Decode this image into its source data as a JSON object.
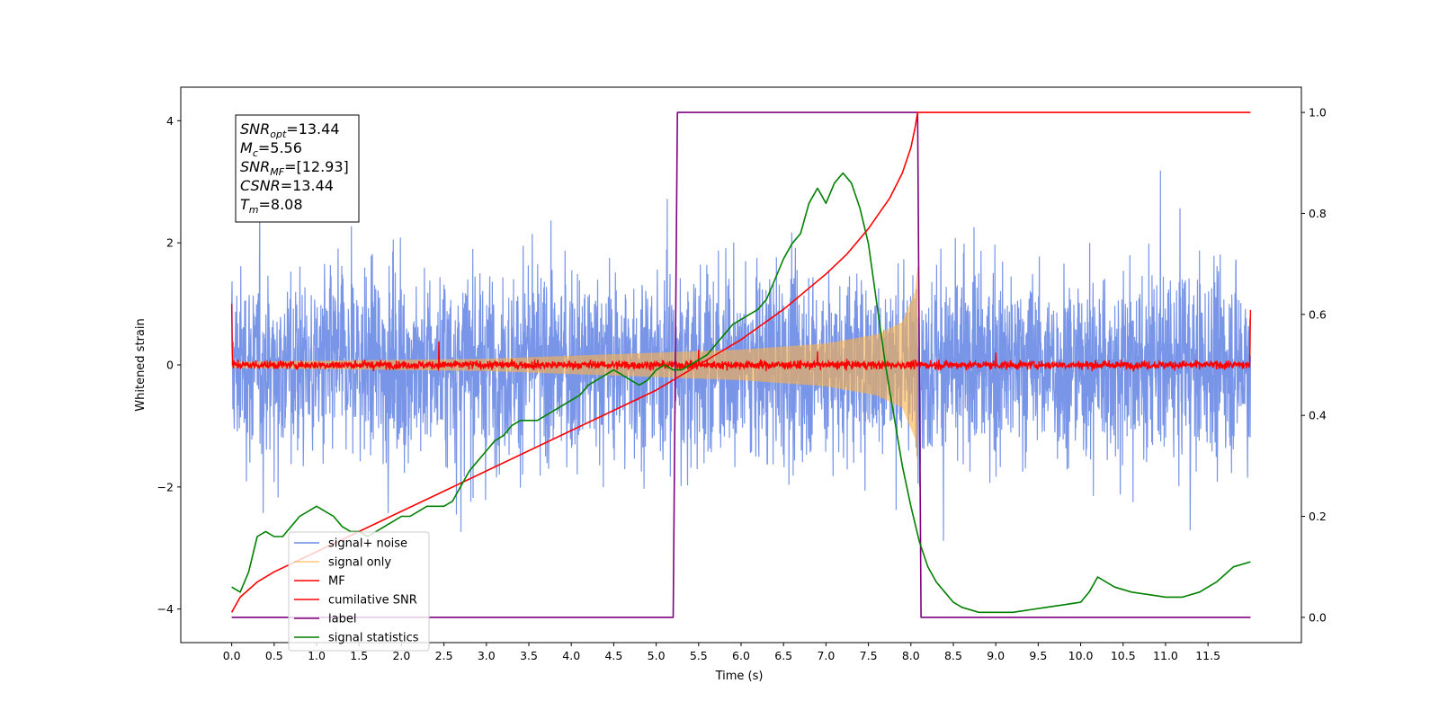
{
  "chart_data": {
    "type": "line",
    "title": "",
    "xlabel": "Time (s)",
    "ylabel": "Whitened strain",
    "xlim": [
      -0.6,
      12.6
    ],
    "ylim": [
      -4.55,
      4.55
    ],
    "ylim_right": [
      -0.05,
      1.05
    ],
    "grid": false,
    "legend_position": "lower-left",
    "x_ticks": [
      "0.0",
      "0.5",
      "1.0",
      "1.5",
      "2.0",
      "2.5",
      "3.0",
      "3.5",
      "4.0",
      "4.5",
      "5.0",
      "5.5",
      "6.0",
      "6.5",
      "7.0",
      "7.5",
      "8.0",
      "8.5",
      "9.0",
      "9.5",
      "10.0",
      "10.5",
      "11.0",
      "11.5"
    ],
    "y_ticks_left": [
      "-4",
      "-2",
      "0",
      "2",
      "4"
    ],
    "y_ticks_right": [
      "0.0",
      "0.2",
      "0.4",
      "0.6",
      "0.8",
      "1.0"
    ],
    "annotation": [
      {
        "base": "SNR",
        "sub": "opt",
        "rest": "=13.44"
      },
      {
        "base": "M",
        "sub": "c",
        "rest": "=5.56"
      },
      {
        "base": "SNR",
        "sub": "MF",
        "rest": "=[12.93]"
      },
      {
        "base": "CSNR",
        "sub": "",
        "rest": "=13.44"
      },
      {
        "base": "T",
        "sub": "m",
        "rest": "=8.08"
      }
    ],
    "series": [
      {
        "name": "signal+ noise",
        "color": "#6a8ae6",
        "axis": "left",
        "style": "noise",
        "x_range": [
          0.0,
          12.0
        ],
        "typical_amplitude": 1.8,
        "peak_amplitude": 4.1
      },
      {
        "name": "signal only",
        "color": "#ffb347",
        "axis": "left",
        "style": "chirp",
        "x_range": [
          0.0,
          8.08
        ],
        "envelope": [
          [
            0.0,
            0.05
          ],
          [
            3.0,
            0.1
          ],
          [
            6.0,
            0.25
          ],
          [
            7.0,
            0.35
          ],
          [
            7.6,
            0.5
          ],
          [
            7.9,
            0.7
          ],
          [
            8.05,
            1.2
          ],
          [
            8.08,
            1.6
          ]
        ]
      },
      {
        "name": "MF",
        "color": "#ff0000",
        "axis": "left",
        "style": "mf",
        "x_range": [
          0.0,
          12.0
        ],
        "typical_amplitude": 0.1,
        "edge_values": [
          1.0,
          0.9
        ],
        "spikes": [
          [
            2.44,
            0.38
          ],
          [
            5.5,
            0.25
          ],
          [
            6.9,
            0.22
          ],
          [
            9.0,
            0.2
          ]
        ]
      },
      {
        "name": "cumilative SNR",
        "color": "#ff0000",
        "axis": "right",
        "x": [
          0.0,
          0.1,
          0.3,
          0.5,
          1.0,
          1.5,
          2.0,
          2.5,
          3.0,
          3.5,
          4.0,
          4.5,
          5.0,
          5.5,
          6.0,
          6.5,
          7.0,
          7.25,
          7.5,
          7.75,
          7.9,
          8.0,
          8.05,
          8.08,
          8.5,
          9.0,
          10.0,
          11.0,
          12.0
        ],
        "values": [
          0.01,
          0.04,
          0.07,
          0.09,
          0.13,
          0.17,
          0.21,
          0.25,
          0.29,
          0.33,
          0.37,
          0.41,
          0.45,
          0.5,
          0.55,
          0.61,
          0.68,
          0.72,
          0.77,
          0.83,
          0.88,
          0.93,
          0.97,
          1.0,
          1.0,
          1.0,
          1.0,
          1.0,
          1.0
        ]
      },
      {
        "name": "label",
        "color": "#800080",
        "axis": "right",
        "x": [
          0.0,
          5.2,
          5.25,
          8.08,
          8.12,
          12.0
        ],
        "values": [
          0.0,
          0.0,
          1.0,
          1.0,
          0.0,
          0.0
        ]
      },
      {
        "name": "signal statistics",
        "color": "#008000",
        "axis": "right",
        "x": [
          0.0,
          0.1,
          0.2,
          0.3,
          0.4,
          0.5,
          0.6,
          0.7,
          0.8,
          0.9,
          1.0,
          1.1,
          1.2,
          1.3,
          1.4,
          1.5,
          1.6,
          1.7,
          1.8,
          1.9,
          2.0,
          2.1,
          2.2,
          2.3,
          2.4,
          2.5,
          2.6,
          2.7,
          2.8,
          2.9,
          3.0,
          3.1,
          3.2,
          3.3,
          3.4,
          3.5,
          3.6,
          3.7,
          3.8,
          3.9,
          4.0,
          4.1,
          4.2,
          4.3,
          4.4,
          4.5,
          4.6,
          4.7,
          4.8,
          4.9,
          5.0,
          5.1,
          5.2,
          5.3,
          5.4,
          5.5,
          5.6,
          5.7,
          5.8,
          5.9,
          6.0,
          6.1,
          6.2,
          6.3,
          6.4,
          6.5,
          6.6,
          6.7,
          6.8,
          6.9,
          7.0,
          7.1,
          7.2,
          7.3,
          7.4,
          7.5,
          7.6,
          7.7,
          7.8,
          7.9,
          8.0,
          8.1,
          8.2,
          8.3,
          8.4,
          8.5,
          8.6,
          8.8,
          9.0,
          9.2,
          9.4,
          9.6,
          9.8,
          10.0,
          10.1,
          10.2,
          10.3,
          10.4,
          10.6,
          10.8,
          11.0,
          11.2,
          11.4,
          11.6,
          11.8,
          12.0
        ],
        "values": [
          0.06,
          0.05,
          0.09,
          0.16,
          0.17,
          0.16,
          0.16,
          0.18,
          0.2,
          0.21,
          0.22,
          0.21,
          0.2,
          0.18,
          0.17,
          0.17,
          0.16,
          0.17,
          0.18,
          0.19,
          0.2,
          0.2,
          0.21,
          0.22,
          0.22,
          0.22,
          0.23,
          0.26,
          0.29,
          0.31,
          0.33,
          0.35,
          0.36,
          0.38,
          0.39,
          0.39,
          0.39,
          0.4,
          0.41,
          0.42,
          0.43,
          0.44,
          0.46,
          0.47,
          0.48,
          0.49,
          0.48,
          0.47,
          0.46,
          0.47,
          0.49,
          0.5,
          0.49,
          0.49,
          0.5,
          0.51,
          0.52,
          0.54,
          0.56,
          0.58,
          0.59,
          0.6,
          0.61,
          0.63,
          0.67,
          0.71,
          0.74,
          0.76,
          0.82,
          0.85,
          0.82,
          0.86,
          0.88,
          0.86,
          0.81,
          0.74,
          0.62,
          0.5,
          0.4,
          0.3,
          0.22,
          0.15,
          0.1,
          0.07,
          0.05,
          0.03,
          0.02,
          0.01,
          0.01,
          0.01,
          0.015,
          0.02,
          0.025,
          0.03,
          0.05,
          0.08,
          0.07,
          0.06,
          0.05,
          0.045,
          0.04,
          0.04,
          0.05,
          0.07,
          0.1,
          0.11
        ]
      }
    ]
  }
}
